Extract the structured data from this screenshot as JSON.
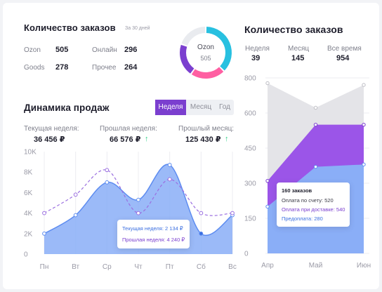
{
  "orders_left": {
    "title": "Количество заказов",
    "period": "За 30 дней",
    "items": [
      {
        "label": "Ozon",
        "value": "505"
      },
      {
        "label": "Онлайн",
        "value": "296"
      },
      {
        "label": "Goods",
        "value": "278"
      },
      {
        "label": "Прочее",
        "value": "264"
      }
    ]
  },
  "donut": {
    "label": "Ozon",
    "value": "505",
    "segments": [
      {
        "name": "Ozon",
        "value": 505,
        "color": "#28c0e0"
      },
      {
        "name": "Онлайн",
        "value": 296,
        "color": "#ff5fa2"
      },
      {
        "name": "Goods",
        "value": 278,
        "color": "#7b3fcf"
      },
      {
        "name": "Прочее",
        "value": 264,
        "color": "#e9ebef"
      }
    ]
  },
  "sales": {
    "title": "Динамика продаж",
    "tabs": [
      "Неделя",
      "Месяц",
      "Год"
    ],
    "active_tab": 0,
    "stats": [
      {
        "label": "Текущая неделя:",
        "value": "36 456 ₽",
        "trend": ""
      },
      {
        "label": "Прошлая неделя:",
        "value": "66 576 ₽",
        "trend": "↑"
      },
      {
        "label": "Прошлый месяц:",
        "value": "125 430 ₽",
        "trend": "↑"
      }
    ],
    "tooltip": {
      "current": "Текущая неделя: 2 134 ₽",
      "previous": "Прошлая неделя: 4 240 ₽"
    }
  },
  "orders_right": {
    "title": "Количество заказов",
    "stats": [
      {
        "label": "Неделя",
        "value": "39"
      },
      {
        "label": "Месяц",
        "value": "145"
      },
      {
        "label": "Все время",
        "value": "954"
      }
    ],
    "tooltip": {
      "title": "160 заказов",
      "line1": "Оплата по счету: 520",
      "line2": "Оплата при доставке: 540",
      "line3": "Предоплата: 280"
    }
  },
  "chart_data": [
    {
      "type": "area",
      "title": "Динамика продаж",
      "categories": [
        "Пн",
        "Вт",
        "Ср",
        "Чт",
        "Пт",
        "Сб",
        "Вс"
      ],
      "y_ticks": [
        "0",
        "2K",
        "4K",
        "6K",
        "8K",
        "10K"
      ],
      "ylim": [
        0,
        10000
      ],
      "grid": "vertical",
      "series": [
        {
          "name": "Текущая неделя",
          "values": [
            2000,
            3800,
            7000,
            5300,
            8700,
            2000,
            3800
          ],
          "color": "#8aaef7"
        },
        {
          "name": "Прошлая неделя",
          "values": [
            4000,
            5800,
            8200,
            4000,
            7300,
            4000,
            4000
          ],
          "color": "#9b6fe0"
        }
      ]
    },
    {
      "type": "area",
      "title": "Количество заказов",
      "categories": [
        "Апр",
        "Май",
        "Июн"
      ],
      "y_ticks": [
        "0",
        "150",
        "300",
        "450",
        "600",
        "800"
      ],
      "grid": "horizontal",
      "series": [
        {
          "name": "Предоплата",
          "values": [
            200,
            370,
            380
          ],
          "color": "#8aaef7"
        },
        {
          "name": "Оплата при доставке",
          "values": [
            310,
            550,
            550
          ],
          "color": "#9b55e8"
        },
        {
          "name": "Оплата по счету",
          "values": [
            770,
            630,
            760
          ],
          "color": "#e4e4e8"
        }
      ]
    }
  ]
}
